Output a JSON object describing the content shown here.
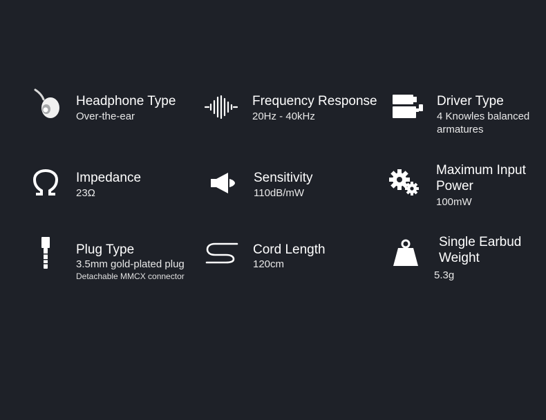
{
  "specs": [
    {
      "icon": "earbud-icon",
      "title": "Headphone Type",
      "value": "Over-the-ear"
    },
    {
      "icon": "waveform-icon",
      "title": "Frequency Response",
      "value": "20Hz - 40kHz"
    },
    {
      "icon": "driver-icon",
      "title": "Driver Type",
      "value_lines": [
        "4 Knowles balanced",
        "armatures"
      ]
    },
    {
      "icon": "omega-icon",
      "title": "Impedance",
      "value": "23Ω"
    },
    {
      "icon": "speaker-icon",
      "title": "Sensitivity",
      "value": "110dB/mW"
    },
    {
      "icon": "gears-icon",
      "title_lines": [
        "Maximum Input",
        "Power"
      ],
      "value": "100mW"
    },
    {
      "icon": "plug-icon",
      "title": "Plug Type",
      "value": "3.5mm gold-plated plug",
      "note": "Detachable MMCX connector"
    },
    {
      "icon": "cord-icon",
      "title": "Cord Length",
      "value": "120cm"
    },
    {
      "icon": "weight-icon",
      "title_lines": [
        "Single Earbud",
        "Weight"
      ],
      "value": "5.3g"
    }
  ],
  "colors": {
    "background": "#1e2128",
    "text": "#ffffff"
  }
}
